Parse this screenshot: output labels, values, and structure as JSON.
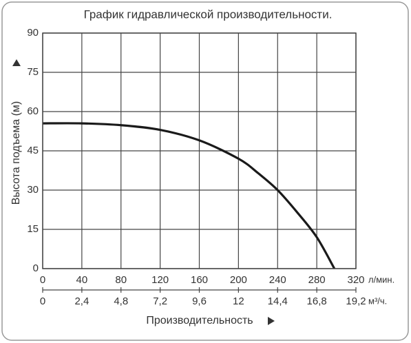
{
  "chart_data": {
    "type": "line",
    "title": "График гидравлической производительности.",
    "ylabel": "Высота подъема (м)",
    "xlabel": "Производительность",
    "x_unit": "л/мин.",
    "x2_unit": "м³/ч.",
    "x": [
      0,
      40,
      80,
      120,
      160,
      200,
      220,
      240,
      260,
      280,
      298
    ],
    "values": [
      55.5,
      55.5,
      54.8,
      53,
      49,
      42,
      36.5,
      30,
      21.5,
      12,
      0
    ],
    "color": "#1a1a1a",
    "xlim": [
      0,
      320
    ],
    "xticks": [
      0,
      40,
      80,
      120,
      160,
      200,
      240,
      280,
      320
    ],
    "x2lim": [
      0,
      19.2
    ],
    "x2ticks": [
      0,
      {
        "value": 2.4,
        "label": "2,4"
      },
      {
        "value": 4.8,
        "label": "4,8"
      },
      {
        "value": 7.2,
        "label": "7,2"
      },
      {
        "value": 9.6,
        "label": "9,6"
      },
      12,
      {
        "value": 14.4,
        "label": "14,4"
      },
      {
        "value": 16.8,
        "label": "16,8"
      },
      {
        "value": 19.2,
        "label": "19,2"
      }
    ],
    "ylim": [
      0,
      90
    ],
    "yticks": [
      0,
      15,
      30,
      45,
      60,
      75,
      90
    ],
    "grid": true
  }
}
